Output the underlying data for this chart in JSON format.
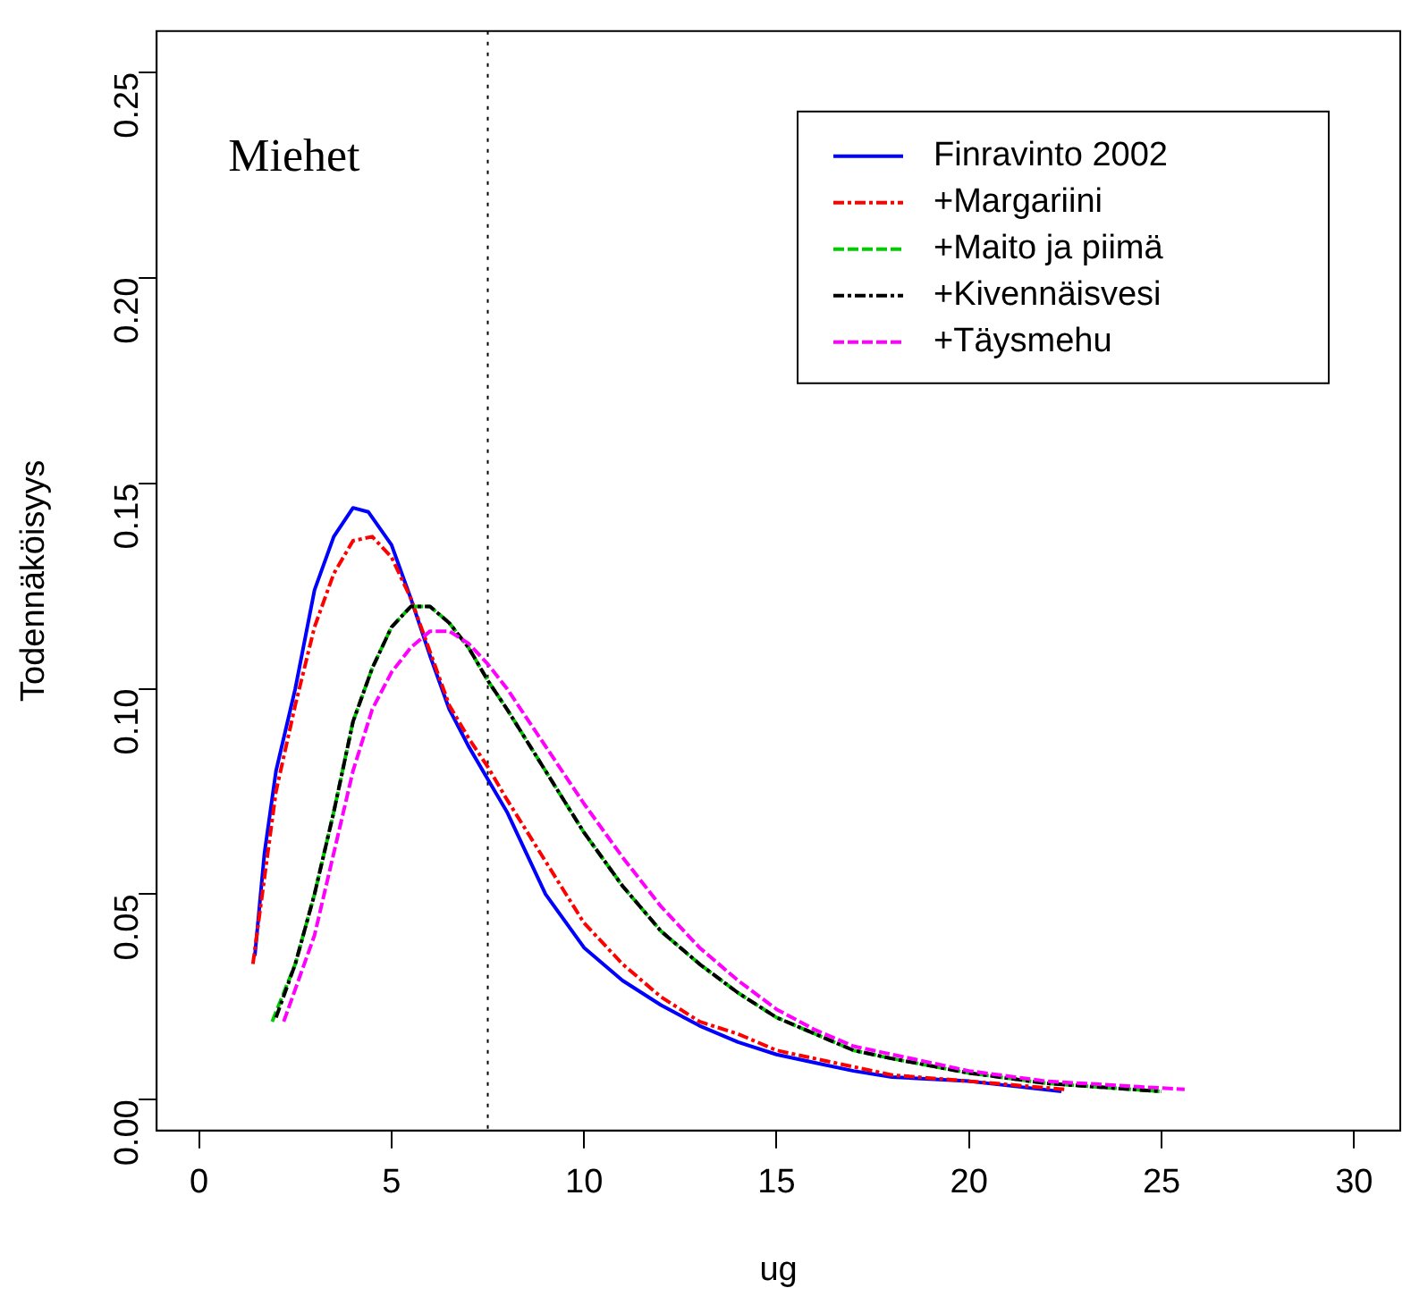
{
  "chart_data": {
    "type": "line",
    "xlabel": "ug",
    "ylabel": "Todennäköisyys",
    "annotations": [
      "Miehet"
    ],
    "legend": "top right",
    "grid": false,
    "marker": "none",
    "xlim": [
      -1.1,
      31.2
    ],
    "ylim": [
      -0.0075,
      0.26
    ],
    "xticks": [
      0,
      5,
      10,
      15,
      20,
      25,
      30
    ],
    "yticks": [
      {
        "value": 0,
        "label": "0.00"
      },
      0.05,
      {
        "value": 0.1,
        "label": "0.10"
      },
      0.15,
      {
        "value": 0.2,
        "label": "0.20"
      },
      0.25
    ],
    "ref_lines": [
      {
        "axis": "x",
        "value": 7.5,
        "color": "#000000",
        "line_style": "dotted"
      }
    ],
    "series": [
      {
        "name": "Finravinto 2002",
        "color": "#0000ff",
        "line_style": "solid",
        "x": [
          1.45,
          1.7,
          2,
          2.5,
          3,
          3.5,
          4,
          4.4,
          5,
          5.5,
          6,
          6.5,
          7,
          7.5,
          8,
          8.5,
          9,
          10,
          11,
          12,
          13,
          14,
          15,
          16,
          17,
          18,
          20,
          22.4
        ],
        "values": [
          0.035,
          0.06,
          0.08,
          0.1,
          0.124,
          0.137,
          0.144,
          0.143,
          0.135,
          0.122,
          0.108,
          0.095,
          0.086,
          0.078,
          0.07,
          0.06,
          0.05,
          0.037,
          0.029,
          0.023,
          0.018,
          0.014,
          0.011,
          0.009,
          0.007,
          0.0055,
          0.0045,
          0.002
        ]
      },
      {
        "name": "+Margariini",
        "color": "#ff0000",
        "line_style": "dashdot",
        "x": [
          1.4,
          2,
          2.5,
          3,
          3.5,
          4,
          4.5,
          5,
          5.5,
          6,
          6.5,
          7,
          7.5,
          8,
          9,
          10,
          11,
          12,
          13,
          14,
          15,
          17,
          18,
          20,
          22.5
        ],
        "values": [
          0.033,
          0.075,
          0.096,
          0.115,
          0.128,
          0.136,
          0.137,
          0.132,
          0.122,
          0.109,
          0.096,
          0.088,
          0.081,
          0.073,
          0.058,
          0.043,
          0.033,
          0.025,
          0.019,
          0.016,
          0.012,
          0.008,
          0.006,
          0.0045,
          0.0025
        ]
      },
      {
        "name": "+Maito ja piimä",
        "color": "#00cd00",
        "line_style": "dashed",
        "x": [
          1.9,
          2.5,
          3,
          3.5,
          4,
          4.5,
          5,
          5.5,
          6,
          6.5,
          7,
          7.5,
          8,
          9,
          10,
          11,
          12,
          13,
          14,
          15,
          16,
          17,
          18,
          20,
          22,
          25
        ],
        "values": [
          0.019,
          0.033,
          0.05,
          0.07,
          0.092,
          0.105,
          0.115,
          0.12,
          0.12,
          0.116,
          0.11,
          0.102,
          0.095,
          0.08,
          0.065,
          0.052,
          0.041,
          0.033,
          0.026,
          0.02,
          0.016,
          0.012,
          0.01,
          0.0065,
          0.004,
          0.002
        ]
      },
      {
        "name": "+Kivennäisvesi",
        "color": "#000000",
        "line_style": "dashdot",
        "x": [
          2,
          2.5,
          3,
          3.5,
          4,
          4.5,
          5,
          5.5,
          6,
          6.5,
          7,
          7.5,
          8,
          9,
          10,
          11,
          12,
          13,
          14,
          15,
          16,
          17,
          18,
          20,
          22,
          25
        ],
        "values": [
          0.02,
          0.033,
          0.05,
          0.07,
          0.092,
          0.105,
          0.115,
          0.12,
          0.12,
          0.116,
          0.11,
          0.102,
          0.095,
          0.08,
          0.065,
          0.052,
          0.041,
          0.033,
          0.026,
          0.02,
          0.016,
          0.012,
          0.01,
          0.0065,
          0.004,
          0.002
        ]
      },
      {
        "name": "+Täysmehu",
        "color": "#ff00ff",
        "line_style": "dashed",
        "x": [
          2.2,
          3,
          3.5,
          4,
          4.5,
          5,
          5.5,
          6,
          6.5,
          7,
          7.5,
          8,
          9,
          10,
          11,
          12,
          13,
          14,
          15,
          16,
          17,
          18,
          20,
          22,
          25.6
        ],
        "values": [
          0.019,
          0.04,
          0.06,
          0.08,
          0.095,
          0.104,
          0.11,
          0.114,
          0.114,
          0.111,
          0.106,
          0.1,
          0.086,
          0.072,
          0.059,
          0.047,
          0.037,
          0.029,
          0.022,
          0.017,
          0.013,
          0.011,
          0.007,
          0.0045,
          0.0025
        ]
      }
    ]
  }
}
